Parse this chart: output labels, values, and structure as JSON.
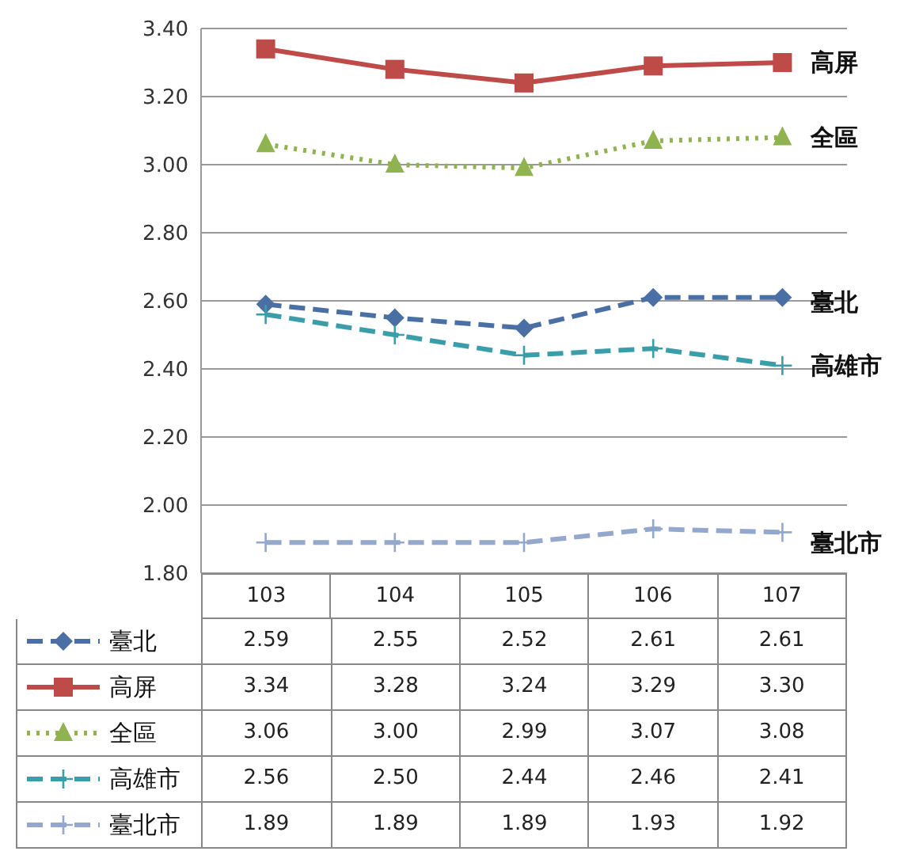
{
  "chart_data": {
    "type": "line",
    "categories": [
      "103",
      "104",
      "105",
      "106",
      "107"
    ],
    "ylim": [
      1.8,
      3.4
    ],
    "yticks": [
      {
        "value": 1.8,
        "label": "1.80"
      },
      {
        "value": 2.0,
        "label": "2.00"
      },
      {
        "value": 2.2,
        "label": "2.20"
      },
      {
        "value": 2.4,
        "label": "2.40"
      },
      {
        "value": 2.6,
        "label": "2.60"
      },
      {
        "value": 2.8,
        "label": "2.80"
      },
      {
        "value": 3.0,
        "label": "3.00"
      },
      {
        "value": 3.2,
        "label": "3.20"
      },
      {
        "value": 3.4,
        "label": "3.40"
      }
    ],
    "grid": "y",
    "legend": "bottom",
    "series": [
      {
        "name": "臺北",
        "color": "#4a6fa5",
        "marker": "diamond",
        "line_style": "dashed",
        "values": [
          2.59,
          2.55,
          2.52,
          2.61,
          2.61
        ],
        "value_labels": [
          "2.59",
          "2.55",
          "2.52",
          "2.61",
          "2.61"
        ]
      },
      {
        "name": "高屏",
        "color": "#be4b48",
        "marker": "square",
        "line_style": "solid",
        "values": [
          3.34,
          3.28,
          3.24,
          3.29,
          3.3
        ],
        "value_labels": [
          "3.34",
          "3.28",
          "3.24",
          "3.29",
          "3.30"
        ]
      },
      {
        "name": "全區",
        "color": "#8fb44f",
        "marker": "triangle",
        "line_style": "dotted",
        "values": [
          3.06,
          3.0,
          2.99,
          3.07,
          3.08
        ],
        "value_labels": [
          "3.06",
          "3.00",
          "2.99",
          "3.07",
          "3.08"
        ]
      },
      {
        "name": "高雄市",
        "color": "#3a9eaa",
        "marker": "cross",
        "line_style": "dashed",
        "values": [
          2.56,
          2.5,
          2.44,
          2.46,
          2.41
        ],
        "value_labels": [
          "2.56",
          "2.50",
          "2.44",
          "2.46",
          "2.41"
        ]
      },
      {
        "name": "臺北市",
        "color": "#93a8cc",
        "marker": "cross",
        "line_style": "dashed",
        "values": [
          1.89,
          1.89,
          1.89,
          1.93,
          1.92
        ],
        "value_labels": [
          "1.89",
          "1.89",
          "1.89",
          "1.93",
          "1.92"
        ]
      }
    ]
  }
}
